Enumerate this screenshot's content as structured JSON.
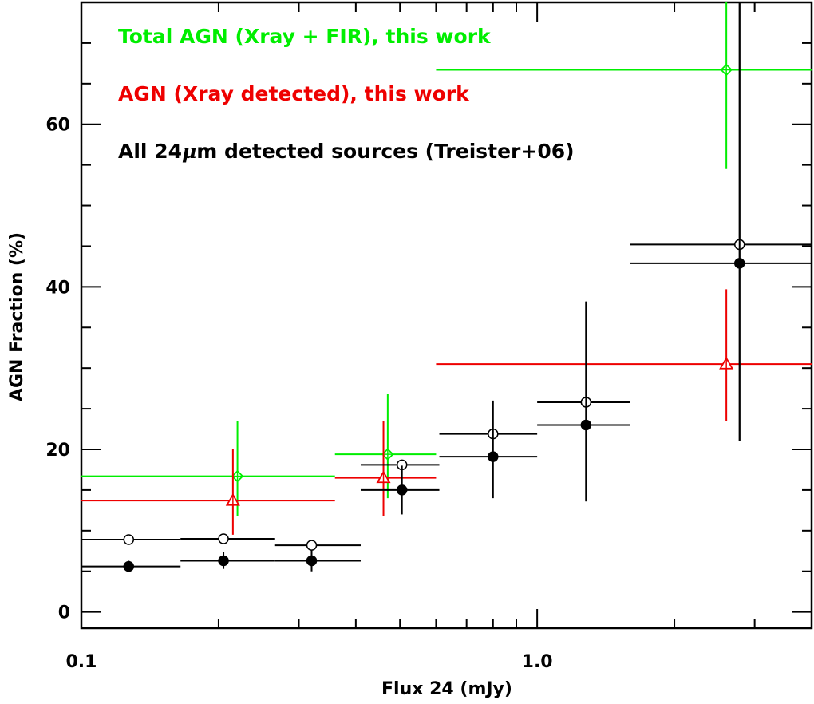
{
  "chart_data": {
    "type": "scatter",
    "title": "",
    "xlabel": "Flux 24 (mJy)",
    "ylabel": "AGN Fraction (%)",
    "xscale": "log",
    "xlim": [
      0.1,
      4.0
    ],
    "ylim": [
      -2,
      75
    ],
    "x_tick_labels": [
      {
        "value": 0.1,
        "label": "0.1"
      },
      {
        "value": 1.0,
        "label": "1.0"
      }
    ],
    "y_tick_labels": [
      {
        "value": 0,
        "label": "0"
      },
      {
        "value": 20,
        "label": "20"
      },
      {
        "value": 40,
        "label": "40"
      },
      {
        "value": 60,
        "label": "60"
      }
    ],
    "legend": {
      "placement": "top-left",
      "entries": [
        {
          "text_before": "Total AGN (Xray + FIR), this work",
          "text_after": "",
          "color": "#00ee00"
        },
        {
          "text_before": "AGN (Xray detected), this work",
          "text_after": "",
          "color": "#ee0000"
        },
        {
          "text_before": "All 24",
          "greek": "μ",
          "text_after": "m detected sources (Treister+06)",
          "color": "#000000"
        }
      ]
    },
    "series": [
      {
        "marker": "diamond-open",
        "color": "#00ee00",
        "points": [
          {
            "x": 0.22,
            "y": 16.7,
            "xerr": [
              0.1,
              0.36
            ],
            "yerr": [
              11.8,
              23.5
            ]
          },
          {
            "x": 0.47,
            "y": 19.4,
            "xerr": [
              0.36,
              0.6
            ],
            "yerr": [
              14.0,
              26.8
            ]
          },
          {
            "x": 2.6,
            "y": 66.7,
            "xerr": [
              0.6,
              4.0
            ],
            "yerr": [
              54.5,
              75
            ]
          }
        ]
      },
      {
        "marker": "triangle-open",
        "color": "#ee0000",
        "points": [
          {
            "x": 0.215,
            "y": 13.7,
            "xerr": [
              0.1,
              0.36
            ],
            "yerr": [
              9.5,
              20.0
            ]
          },
          {
            "x": 0.46,
            "y": 16.5,
            "xerr": [
              0.36,
              0.6
            ],
            "yerr": [
              11.8,
              23.5
            ]
          },
          {
            "x": 2.6,
            "y": 30.5,
            "xerr": [
              0.6,
              4.0
            ],
            "yerr": [
              23.5,
              39.7
            ]
          }
        ]
      },
      {
        "marker": "circle-open",
        "color": "#000000",
        "points": [
          {
            "x": 0.127,
            "y": 8.9,
            "xerr": [
              0.1,
              0.165
            ],
            "yerr": [
              8.9,
              8.9
            ]
          },
          {
            "x": 0.205,
            "y": 9.0,
            "xerr": [
              0.165,
              0.265
            ],
            "yerr": [
              9.0,
              9.0
            ]
          },
          {
            "x": 0.32,
            "y": 8.2,
            "xerr": [
              0.265,
              0.41
            ],
            "yerr": [
              8.2,
              8.2
            ]
          },
          {
            "x": 0.505,
            "y": 18.1,
            "xerr": [
              0.41,
              0.61
            ],
            "yerr": [
              18.1,
              18.1
            ]
          },
          {
            "x": 0.8,
            "y": 21.9,
            "xerr": [
              0.61,
              1.0
            ],
            "yerr": [
              21.9,
              21.9
            ]
          },
          {
            "x": 1.28,
            "y": 25.8,
            "xerr": [
              1.0,
              1.6
            ],
            "yerr": [
              13.6,
              38.2
            ]
          },
          {
            "x": 2.78,
            "y": 45.2,
            "xerr": [
              1.6,
              4.0
            ],
            "yerr": [
              21.0,
              75
            ]
          }
        ]
      },
      {
        "marker": "circle-filled",
        "color": "#000000",
        "points": [
          {
            "x": 0.127,
            "y": 5.6,
            "xerr": [
              0.1,
              0.165
            ],
            "yerr": [
              5.0,
              6.3
            ]
          },
          {
            "x": 0.205,
            "y": 6.3,
            "xerr": [
              0.165,
              0.265
            ],
            "yerr": [
              5.3,
              7.4
            ]
          },
          {
            "x": 0.32,
            "y": 6.3,
            "xerr": [
              0.265,
              0.41
            ],
            "yerr": [
              5.0,
              7.6
            ]
          },
          {
            "x": 0.505,
            "y": 15.0,
            "xerr": [
              0.41,
              0.61
            ],
            "yerr": [
              12.0,
              18.0
            ]
          },
          {
            "x": 0.8,
            "y": 19.1,
            "xerr": [
              0.61,
              1.0
            ],
            "yerr": [
              14.0,
              26.0
            ]
          },
          {
            "x": 1.28,
            "y": 23.0,
            "xerr": [
              1.0,
              1.6
            ],
            "yerr": [
              13.6,
              38.2
            ]
          },
          {
            "x": 2.78,
            "y": 42.9,
            "xerr": [
              1.6,
              4.0
            ],
            "yerr": [
              21.0,
              75
            ]
          }
        ]
      }
    ]
  }
}
